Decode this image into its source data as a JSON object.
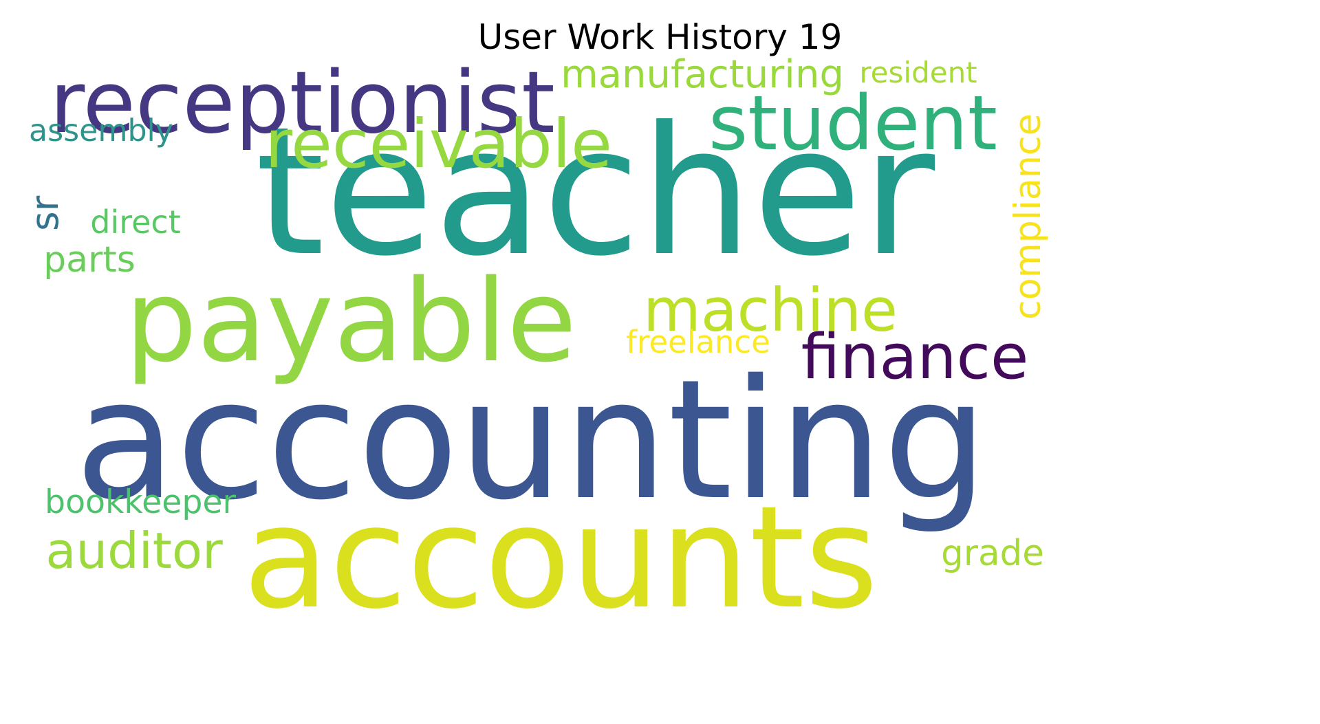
{
  "title": "User Work History 19",
  "words": [
    {
      "key": "accounting",
      "text": "accounting",
      "color": "#3b5690"
    },
    {
      "key": "teacher",
      "text": "teacher",
      "color": "#229a8c"
    },
    {
      "key": "accounts",
      "text": "accounts",
      "color": "#dbe01e"
    },
    {
      "key": "payable",
      "text": "payable",
      "color": "#93d643"
    },
    {
      "key": "receptionist",
      "text": "receptionist",
      "color": "#453781"
    },
    {
      "key": "student",
      "text": "student",
      "color": "#30b07b"
    },
    {
      "key": "receivable",
      "text": "receivable",
      "color": "#95d840"
    },
    {
      "key": "machine",
      "text": "machine",
      "color": "#bcdf27"
    },
    {
      "key": "finance",
      "text": "finance",
      "color": "#430a5c"
    },
    {
      "key": "manufacturing",
      "text": "manufacturing",
      "color": "#9ad93c"
    },
    {
      "key": "resident",
      "text": "resident",
      "color": "#a6db35"
    },
    {
      "key": "sr",
      "text": "sr",
      "color": "#33728d"
    },
    {
      "key": "assembly",
      "text": "assembly",
      "color": "#2e938b"
    },
    {
      "key": "direct",
      "text": "direct",
      "color": "#59c864"
    },
    {
      "key": "parts",
      "text": "parts",
      "color": "#6acd5b"
    },
    {
      "key": "compliance",
      "text": "compliance",
      "color": "#f7e21c"
    },
    {
      "key": "freelance",
      "text": "freelance",
      "color": "#fce825"
    },
    {
      "key": "bookkeeper",
      "text": "bookkeeper",
      "color": "#4cc26c"
    },
    {
      "key": "auditor",
      "text": "auditor",
      "color": "#9bd93c"
    },
    {
      "key": "grade",
      "text": "grade",
      "color": "#a6db35"
    }
  ]
}
